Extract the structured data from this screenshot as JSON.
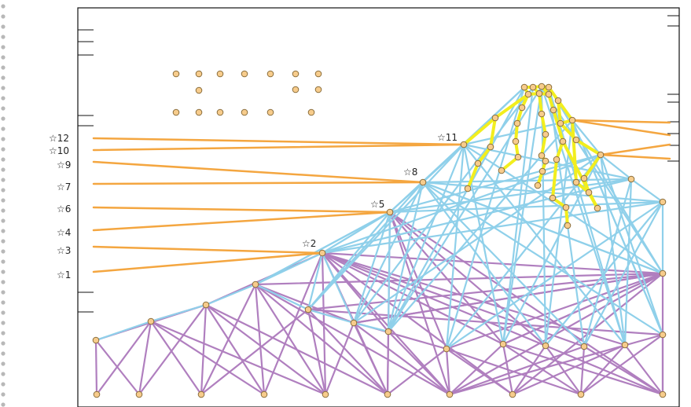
{
  "colors": {
    "background": "#ffffff",
    "frame": "#111111",
    "spiral_binding": "#b8b8b8",
    "orange_links": "#f4a640",
    "yellow_links": "#f2ee1e",
    "blue_links": "#8fd0ea",
    "purple_links": "#b07fbf",
    "node_fill": "#f7cc8c",
    "node_stroke": "#8a6d3b"
  },
  "left_labels": [
    "☆12",
    "☆10",
    "☆9",
    "☆7",
    "☆6",
    "☆4",
    "☆3",
    "☆1"
  ],
  "node_labels": [
    "☆11",
    "☆8",
    "☆5",
    "☆2"
  ]
}
